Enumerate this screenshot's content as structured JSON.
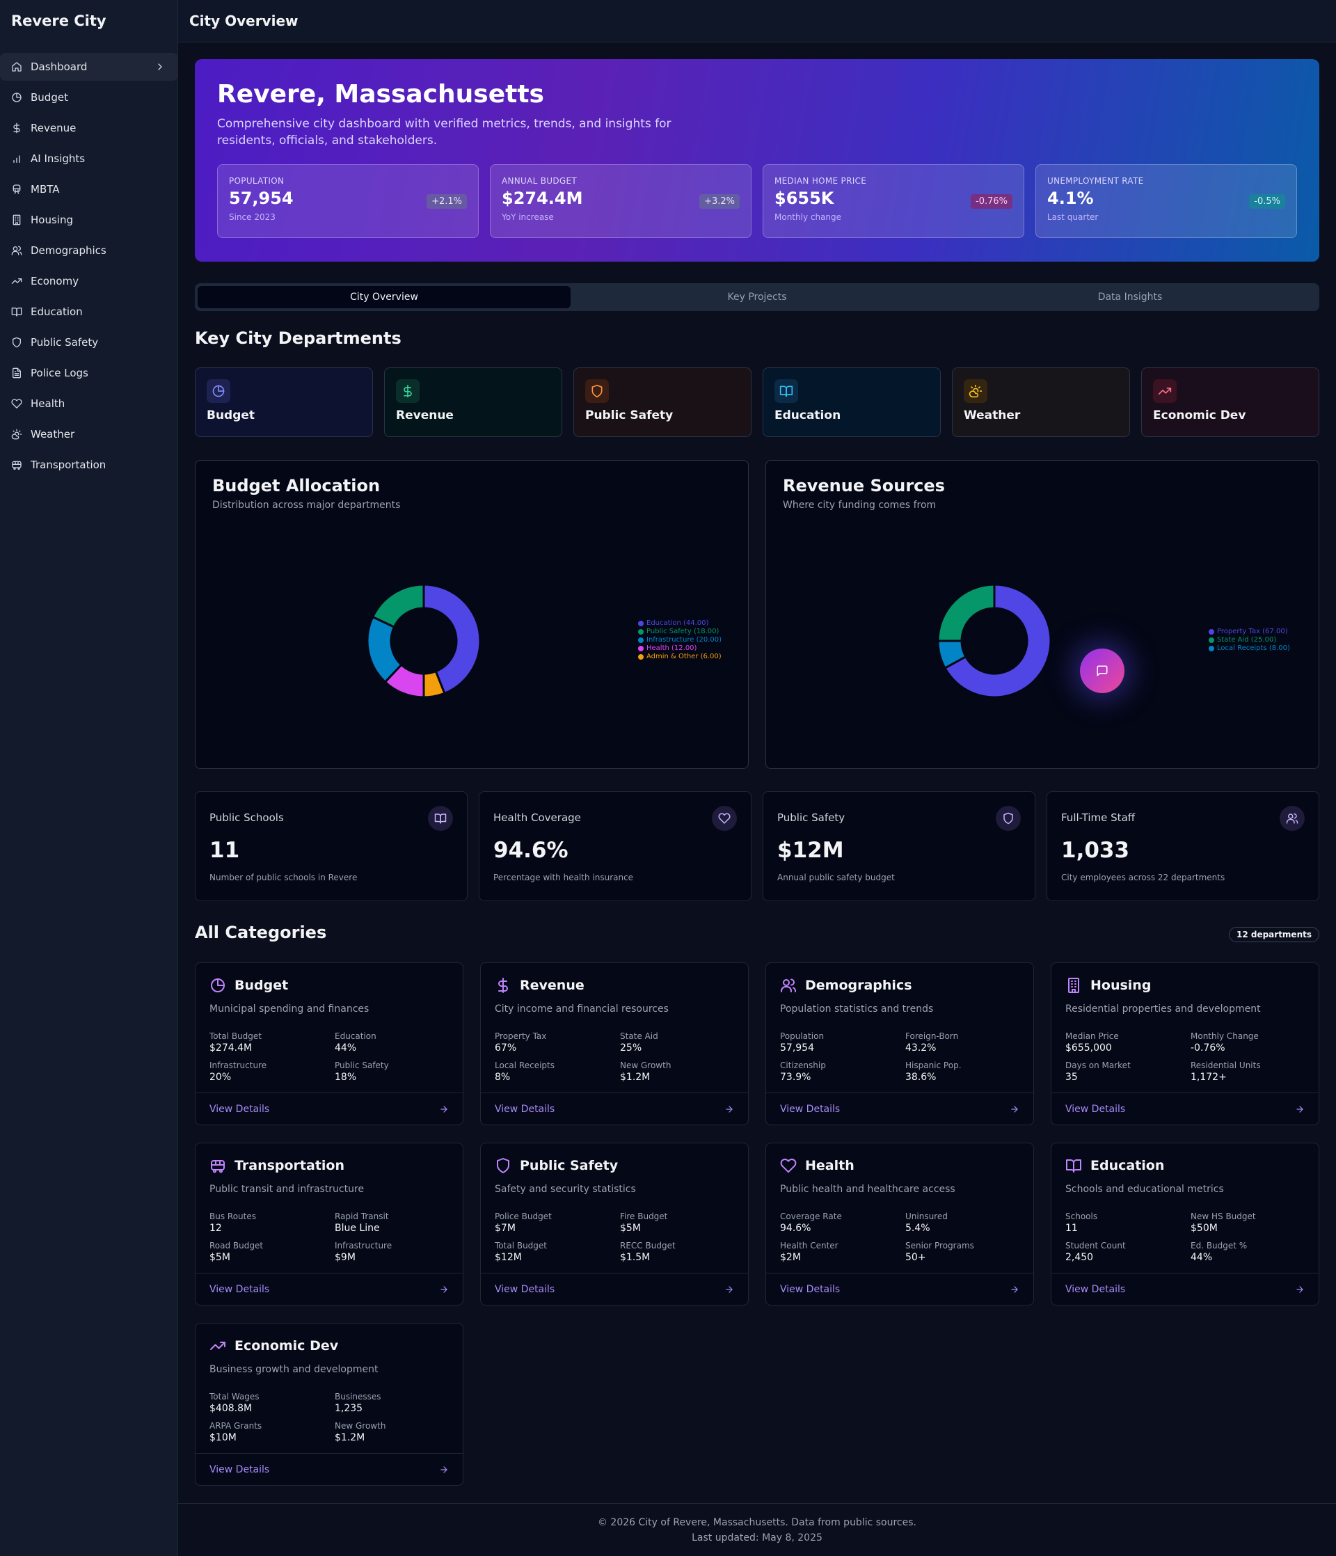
{
  "app": {
    "brand": "Revere City",
    "page_title": "City Overview"
  },
  "sidebar": {
    "items": [
      {
        "label": "Dashboard",
        "icon": "home-icon",
        "active": true
      },
      {
        "label": "Budget",
        "icon": "pie-icon"
      },
      {
        "label": "Revenue",
        "icon": "dollar-icon"
      },
      {
        "label": "AI Insights",
        "icon": "bar-chart-icon"
      },
      {
        "label": "MBTA",
        "icon": "train-icon"
      },
      {
        "label": "Housing",
        "icon": "building-icon"
      },
      {
        "label": "Demographics",
        "icon": "users-icon"
      },
      {
        "label": "Economy",
        "icon": "trending-up-icon"
      },
      {
        "label": "Education",
        "icon": "book-icon"
      },
      {
        "label": "Public Safety",
        "icon": "shield-icon"
      },
      {
        "label": "Police Logs",
        "icon": "file-text-icon"
      },
      {
        "label": "Health",
        "icon": "heart-icon"
      },
      {
        "label": "Weather",
        "icon": "cloud-sun-icon"
      },
      {
        "label": "Transportation",
        "icon": "bus-icon"
      }
    ]
  },
  "hero": {
    "title": "Revere, Massachusetts",
    "subtitle": "Comprehensive city dashboard with verified metrics, trends, and insights for residents, officials, and stakeholders.",
    "stats": [
      {
        "label": "POPULATION",
        "value": "57,954",
        "sub": "Since 2023",
        "change": "+2.1%",
        "tone": "pos"
      },
      {
        "label": "ANNUAL BUDGET",
        "value": "$274.4M",
        "sub": "YoY increase",
        "change": "+3.2%",
        "tone": "pos"
      },
      {
        "label": "MEDIAN HOME PRICE",
        "value": "$655K",
        "sub": "Monthly change",
        "change": "-0.76%",
        "tone": "neg"
      },
      {
        "label": "UNEMPLOYMENT RATE",
        "value": "4.1%",
        "sub": "Last quarter",
        "change": "-0.5%",
        "tone": "good"
      }
    ]
  },
  "tabs": [
    {
      "label": "City Overview",
      "active": true
    },
    {
      "label": "Key Projects"
    },
    {
      "label": "Data Insights"
    }
  ],
  "departments_section": {
    "title": "Key City Departments",
    "items": [
      {
        "label": "Budget",
        "icon": "pie-icon",
        "color": "#818cf8",
        "bg": "#0d1230",
        "iconbg": "#1e2250"
      },
      {
        "label": "Revenue",
        "icon": "dollar-icon",
        "color": "#34d399",
        "bg": "#03151a",
        "iconbg": "#0a2e2a"
      },
      {
        "label": "Public Safety",
        "icon": "shield-icon",
        "color": "#fb923c",
        "bg": "#1a1117",
        "iconbg": "#3a1d14"
      },
      {
        "label": "Education",
        "icon": "book-icon",
        "color": "#38bdf8",
        "bg": "#04162a",
        "iconbg": "#0a2a45"
      },
      {
        "label": "Weather",
        "icon": "cloud-sun-icon",
        "color": "#fbbf24",
        "bg": "#17141a",
        "iconbg": "#33250f"
      },
      {
        "label": "Economic Dev",
        "icon": "trending-up-icon",
        "color": "#fb7185",
        "bg": "#1a0e1d",
        "iconbg": "#3a1222"
      }
    ]
  },
  "chart_data": [
    {
      "type": "pie",
      "title": "Budget Allocation",
      "subtitle": "Distribution across major departments",
      "categories": [
        "Education",
        "Public Safety",
        "Infrastructure",
        "Health",
        "Admin & Other"
      ],
      "values": [
        44,
        18,
        20,
        12,
        6
      ],
      "legend_labels": [
        "Education (44.00)",
        "Public Safety (18.00)",
        "Infrastructure (20.00)",
        "Health (12.00)",
        "Admin & Other (6.00)"
      ],
      "colors": [
        "#4f46e5",
        "#059669",
        "#0284c7",
        "#d946ef",
        "#f59e0b"
      ],
      "slice_order": [
        0,
        4,
        3,
        2,
        1
      ],
      "legend_position": "right"
    },
    {
      "type": "pie",
      "title": "Revenue Sources",
      "subtitle": "Where city funding comes from",
      "categories": [
        "Property Tax",
        "State Aid",
        "Local Receipts"
      ],
      "values": [
        67,
        25,
        8
      ],
      "legend_labels": [
        "Property Tax (67.00)",
        "State Aid (25.00)",
        "Local Receipts (8.00)"
      ],
      "colors": [
        "#4f46e5",
        "#059669",
        "#0284c7"
      ],
      "slice_order": [
        0,
        2,
        1
      ],
      "legend_position": "right"
    }
  ],
  "metrics": [
    {
      "title": "Public Schools",
      "value": "11",
      "desc": "Number of public schools in Revere",
      "icon": "book-icon"
    },
    {
      "title": "Health Coverage",
      "value": "94.6%",
      "desc": "Percentage with health insurance",
      "icon": "heart-icon"
    },
    {
      "title": "Public Safety",
      "value": "$12M",
      "desc": "Annual public safety budget",
      "icon": "shield-icon"
    },
    {
      "title": "Full-Time Staff",
      "value": "1,033",
      "desc": "City employees across 22 departments",
      "icon": "users-icon"
    }
  ],
  "categories_section": {
    "title": "All Categories",
    "count_badge": "12 departments",
    "view_label": "View Details",
    "items": [
      {
        "title": "Budget",
        "icon": "pie-icon",
        "desc": "Municipal spending and finances",
        "fields": [
          [
            "Total Budget",
            "$274.4M"
          ],
          [
            "Education",
            "44%"
          ],
          [
            "Infrastructure",
            "20%"
          ],
          [
            "Public Safety",
            "18%"
          ]
        ]
      },
      {
        "title": "Revenue",
        "icon": "dollar-icon",
        "desc": "City income and financial resources",
        "fields": [
          [
            "Property Tax",
            "67%"
          ],
          [
            "State Aid",
            "25%"
          ],
          [
            "Local Receipts",
            "8%"
          ],
          [
            "New Growth",
            "$1.2M"
          ]
        ]
      },
      {
        "title": "Demographics",
        "icon": "users-icon",
        "desc": "Population statistics and trends",
        "fields": [
          [
            "Population",
            "57,954"
          ],
          [
            "Foreign-Born",
            "43.2%"
          ],
          [
            "Citizenship",
            "73.9%"
          ],
          [
            "Hispanic Pop.",
            "38.6%"
          ]
        ]
      },
      {
        "title": "Housing",
        "icon": "building-icon",
        "desc": "Residential properties and development",
        "fields": [
          [
            "Median Price",
            "$655,000"
          ],
          [
            "Monthly Change",
            "-0.76%"
          ],
          [
            "Days on Market",
            "35"
          ],
          [
            "Residential Units",
            "1,172+"
          ]
        ]
      },
      {
        "title": "Transportation",
        "icon": "bus-icon",
        "desc": "Public transit and infrastructure",
        "fields": [
          [
            "Bus Routes",
            "12"
          ],
          [
            "Rapid Transit",
            "Blue Line"
          ],
          [
            "Road Budget",
            "$5M"
          ],
          [
            "Infrastructure",
            "$9M"
          ]
        ]
      },
      {
        "title": "Public Safety",
        "icon": "shield-icon",
        "desc": "Safety and security statistics",
        "fields": [
          [
            "Police Budget",
            "$7M"
          ],
          [
            "Fire Budget",
            "$5M"
          ],
          [
            "Total Budget",
            "$12M"
          ],
          [
            "RECC Budget",
            "$1.5M"
          ]
        ]
      },
      {
        "title": "Health",
        "icon": "heart-icon",
        "desc": "Public health and healthcare access",
        "fields": [
          [
            "Coverage Rate",
            "94.6%"
          ],
          [
            "Uninsured",
            "5.4%"
          ],
          [
            "Health Center",
            "$2M"
          ],
          [
            "Senior Programs",
            "50+"
          ]
        ]
      },
      {
        "title": "Education",
        "icon": "book-icon",
        "desc": "Schools and educational metrics",
        "fields": [
          [
            "Schools",
            "11"
          ],
          [
            "New HS Budget",
            "$50M"
          ],
          [
            "Student Count",
            "2,450"
          ],
          [
            "Ed. Budget %",
            "44%"
          ]
        ]
      },
      {
        "title": "Economic Dev",
        "icon": "trending-up-icon",
        "desc": "Business growth and development",
        "fields": [
          [
            "Total Wages",
            "$408.8M"
          ],
          [
            "Businesses",
            "1,235"
          ],
          [
            "ARPA Grants",
            "$10M"
          ],
          [
            "New Growth",
            "$1.2M"
          ]
        ]
      }
    ]
  },
  "footer": {
    "line1": "© 2026 City of Revere, Massachusetts. Data from public sources.",
    "line2": "Last updated: May 8, 2025"
  },
  "fab": {
    "icon": "chat-icon"
  }
}
